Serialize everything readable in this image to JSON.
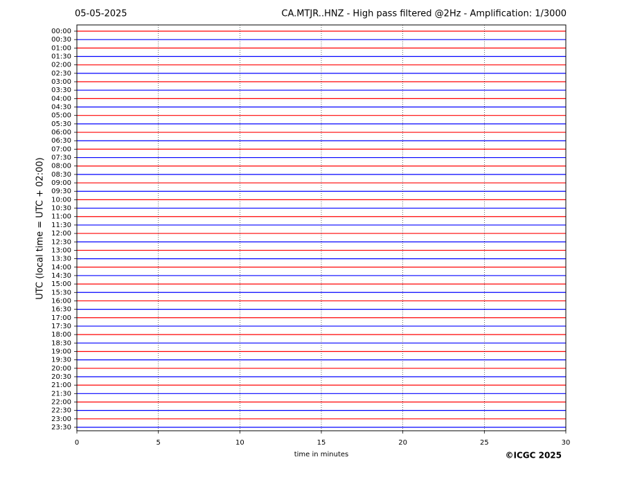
{
  "chart_data": {
    "type": "helicorder",
    "date": "05-05-2025",
    "title": "CA.MTJR..HNZ - High pass filtered @2Hz - Amplification: 1/3000",
    "y_label": "UTC (local time = UTC + 02:00)",
    "x_label": "time in minutes",
    "credit": "©ICGC 2025",
    "xlim": [
      0,
      30
    ],
    "xticks": [
      0,
      5,
      10,
      15,
      20,
      25,
      30
    ],
    "grid": true,
    "trace_colors": [
      "#ff0000",
      "#0000ff"
    ],
    "rows": [
      "00:00",
      "00:30",
      "01:00",
      "01:30",
      "02:00",
      "02:30",
      "03:00",
      "03:30",
      "04:00",
      "04:30",
      "05:00",
      "05:30",
      "06:00",
      "06:30",
      "07:00",
      "07:30",
      "08:00",
      "08:30",
      "09:00",
      "09:30",
      "10:00",
      "10:30",
      "11:00",
      "11:30",
      "12:00",
      "12:30",
      "13:00",
      "13:30",
      "14:00",
      "14:30",
      "15:00",
      "15:30",
      "16:00",
      "16:30",
      "17:00",
      "17:30",
      "18:00",
      "18:30",
      "19:00",
      "19:30",
      "20:00",
      "20:30",
      "21:00",
      "21:30",
      "22:00",
      "22:30",
      "23:00",
      "23:30"
    ]
  }
}
